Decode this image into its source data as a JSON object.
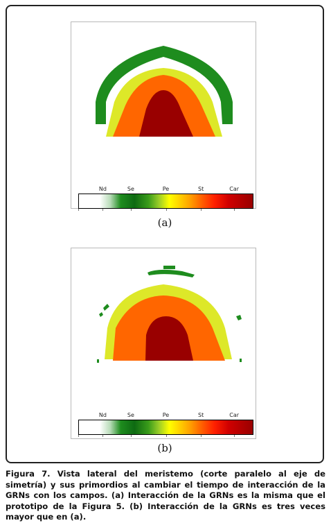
{
  "colors": {
    "Nd": "#ffffff",
    "Se": "#1e8c1e",
    "Pe": "#ffff00",
    "St": "#ff6600",
    "Car": "#990000",
    "light_yellow_green": "#dde829"
  },
  "colorbar": {
    "labels": [
      "Nd",
      "Se",
      "Pe",
      "St",
      "Car"
    ]
  },
  "panels": [
    {
      "label": "(a)"
    },
    {
      "label": "(b)"
    }
  ],
  "caption": "Figura 7. Vista lateral del meristemo (corte paralelo al eje de simetría) y sus primordios al cambiar el tiempo de interacción de la GRNs con  los campos. (a) Interacción de la GRNs es la misma que el prototipo de la Figura 5. (b) Interacción de la GRNs es tres veces mayor que en (a)."
}
